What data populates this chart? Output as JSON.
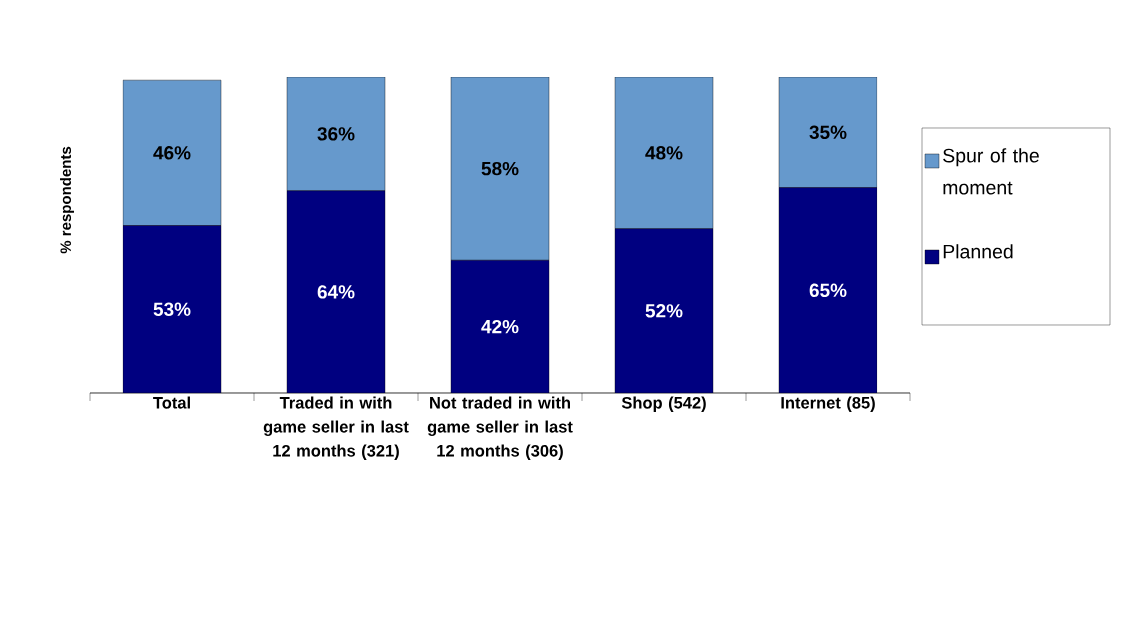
{
  "chart_data": {
    "type": "bar",
    "stacked": true,
    "ylabel": "% respondents",
    "categories": [
      "Total",
      "Traded in with game seller in last 12 months (321)",
      "Not traded in with game seller in last 12 months (306)",
      "Shop (542)",
      "Internet (85)"
    ],
    "series": [
      {
        "name": "Planned",
        "color": "#000080",
        "values": [
          53,
          64,
          42,
          52,
          65
        ],
        "value_labels": [
          "53%",
          "64%",
          "42%",
          "52%",
          "65%"
        ]
      },
      {
        "name": "Spur of the moment",
        "color": "#6699cc",
        "values": [
          46,
          36,
          58,
          48,
          35
        ],
        "value_labels": [
          "46%",
          "36%",
          "58%",
          "48%",
          "35%"
        ]
      }
    ],
    "ylim": [
      0,
      100
    ],
    "legend": "right",
    "tick_labels": "x"
  }
}
